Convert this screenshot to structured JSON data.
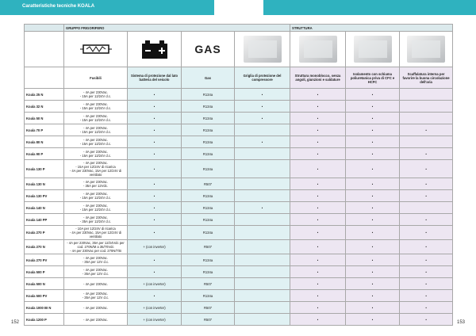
{
  "header": {
    "title": "Caratteristiche tecniche KOALA",
    "page_left": 152,
    "page_right": 153
  },
  "table": {
    "groups": [
      "GRUPPO FRIGORIFERO",
      "STRUTTURA"
    ],
    "icon_text": "GAS",
    "columns": [
      "Fusibili",
      "Sistema di protezione dal lato batteria del veicolo",
      "Gas",
      "Griglia di protezione del compressore",
      "Struttura monoblocco, senza angoli, giunzioni e saldature",
      "Isolamento con schiuma poliuretanica priva di CFC e HCFC",
      "Scaffalatura interna per favorire la buona circolazione dell'aria"
    ],
    "rows": [
      [
        "Koala 25 N",
        "- 4A per 230Vac.\n- 15A per 12/24V d.c.",
        "•",
        "R134a",
        "•",
        "•",
        "•",
        null
      ],
      [
        "Koala 32 N",
        "- 4A per 230Vac.\n- 15A per 12/24V d.c.",
        "•",
        "R134a",
        "•",
        "•",
        "•",
        null
      ],
      [
        "Koala 50 N",
        "- 4A per 230Vac.\n- 15A per 12/24V d.c.",
        "•",
        "R134a",
        "•",
        "•",
        "•",
        null
      ],
      [
        "Koala 70 P",
        "- 4A per 230Vac.\n- 15A per 12/24V d.c.",
        "•",
        "R134a",
        null,
        "•",
        "•",
        "•"
      ],
      [
        "Koala 80 N",
        "- 4A per 230Vac.\n- 15A per 12/24V d.c.",
        "•",
        "R134a",
        "•",
        "•",
        "•",
        null
      ],
      [
        "Koala 90 P",
        "- 4A per 230Vac.\n- 15A per 12/24V d.c.",
        "•",
        "R134a",
        null,
        "•",
        "•",
        "•"
      ],
      [
        "Koala 130 P",
        "- 4A per 230Vac.\n- 15A per 12/24V di ricarica\n- 4A per 230Vac, 15A per 12/24V di ventilato",
        "•",
        "R134a",
        null,
        "•",
        "•",
        "•"
      ],
      [
        "Koala 130 N",
        "- 4A per 230Vac.\n- 35A per 12Vdc.",
        "•",
        "R507",
        null,
        "•",
        "•",
        "•"
      ],
      [
        "Koala 130 PV",
        "- 4A per 230Vac.\n- 15A per 12/24V d.c.",
        "•",
        "R134a",
        null,
        "•",
        "•",
        "•"
      ],
      [
        "Koala 140 N",
        "- 4A per 230Vac.\n- 15A per 12/24V d.c.",
        "•",
        "R134a",
        "•",
        "•",
        "•",
        null
      ],
      [
        "Koala 140 PP",
        "- 4A per 230Vac.\n- 35A per 12/24V d.c.",
        "•",
        "R134a",
        null,
        "•",
        "•",
        "•"
      ],
      [
        "Koala 270 P",
        "- 10A per 12/24V di ricarica\n- 4A per 230Vac, 15A per 12/24V di ventilato",
        "•",
        "R134a",
        null,
        "•",
        "•",
        "•"
      ],
      [
        "Koala 270 N",
        "- 4A per 230Vac, 35A per 12/24Vdc per cod. 270N/M a 35/70Vdc\n- 4A per 230Vac per cod. 270N/T/B",
        "+ (con inverter)",
        "R507",
        null,
        "•",
        "•",
        "•"
      ],
      [
        "Koala 270 PV",
        "- 4A per 230Vac.\n- 35A per 12V d.c.",
        "•",
        "R134a",
        null,
        "•",
        "•",
        "•"
      ],
      [
        "Koala 500 P",
        "- 4A per 230Vac.\n- 35A per 12V d.c.",
        "•",
        "R134a",
        null,
        "•",
        "•",
        "•"
      ],
      [
        "Koala 500 N",
        "- 4A per 230Vac.",
        "+ (con inverter)",
        "R507",
        null,
        "•",
        "•",
        "•"
      ],
      [
        "Koala 500 PV",
        "- 4A per 230Vac.\n- 35A per 12V d.c.",
        "•",
        "R134a",
        null,
        "•",
        "•",
        "•"
      ],
      [
        "Koala 1000 BI N",
        "- 4A per 230Vac.",
        "+ (con inverter)",
        "R507",
        null,
        "•",
        "•",
        "•"
      ],
      [
        "Koala 1200 P",
        "- 4A per 230Vac.",
        "+ (con inverter)",
        "R507",
        null,
        "•",
        "•",
        "•"
      ]
    ]
  }
}
